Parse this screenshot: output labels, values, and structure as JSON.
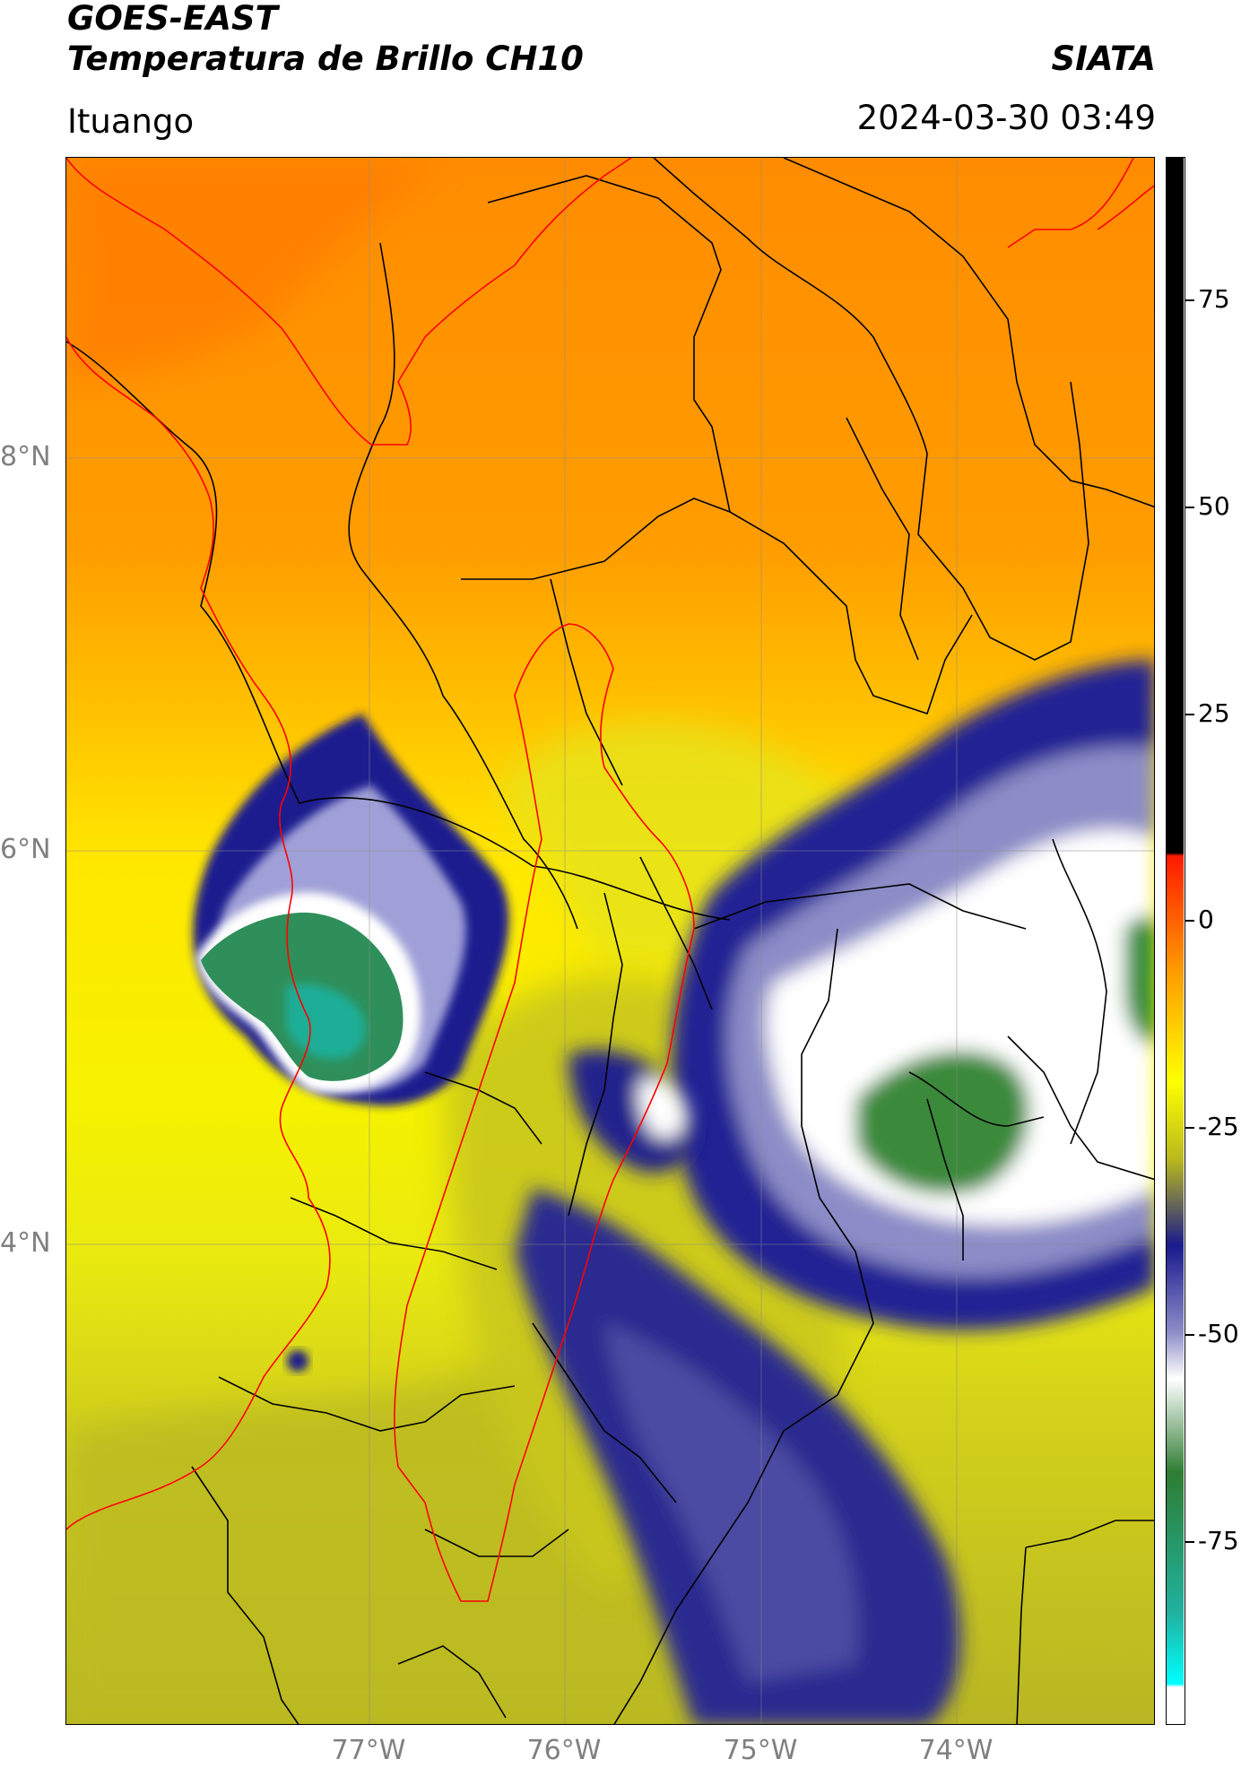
{
  "title_line1": "GOES-EAST",
  "title_line2": "Temperatura de Brillo CH10",
  "organization": "SIATA",
  "region": "Ituango",
  "datetime": "2024-03-30 03:49",
  "latitude_labels": [
    "8°N",
    "6°N",
    "4°N"
  ],
  "longitude_labels": [
    "77°W",
    "76°W",
    "75°W",
    "74°W"
  ],
  "colorbar": {
    "ticks": [
      "75",
      "50",
      "25",
      "0",
      "-25",
      "-50",
      "-75"
    ],
    "range": [
      -90,
      90
    ],
    "colors": {
      "warm_top": "#000000",
      "red": "#ff1a00",
      "orange": "#ff9b00",
      "yellow": "#ffff00",
      "olive": "#b9b81e",
      "navy": "#1a1a8c",
      "white": "#ffffff",
      "green": "#2e7d32",
      "teal": "#20b2a0",
      "cyan": "#00ffff"
    }
  },
  "map": {
    "boundary_colors": {
      "departments": "#000000",
      "basin": "#ff0000",
      "coast": "#ff0000"
    }
  }
}
